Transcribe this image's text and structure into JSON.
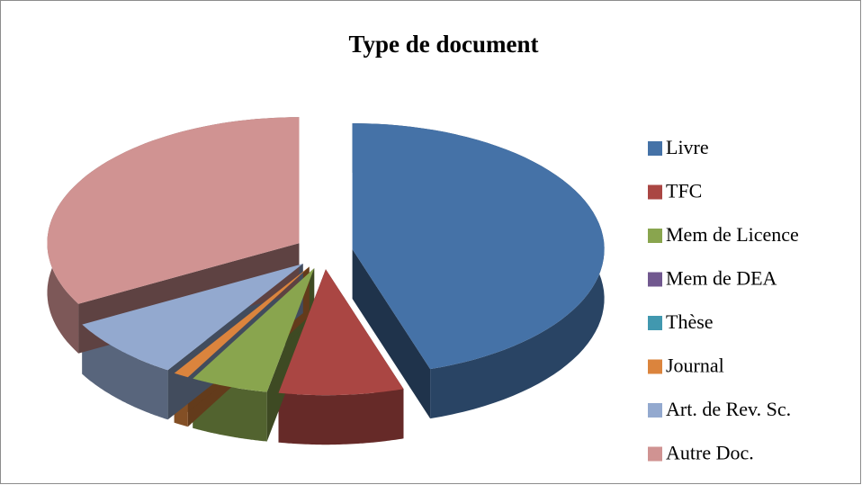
{
  "chart_data": {
    "type": "pie3d",
    "title": "Type de document",
    "categories": [
      "Livre",
      "TFC",
      "Mem de Licence",
      "Mem de DEA",
      "Thèse",
      "Journal",
      "Art. de Rev. Sc.",
      "Autre Doc."
    ],
    "values": [
      45,
      8,
      5,
      0,
      0,
      1,
      8,
      33
    ],
    "colors": [
      "#4572a7",
      "#aa4643",
      "#89a54e",
      "#71588f",
      "#4198af",
      "#db843d",
      "#93a9cf",
      "#d09392"
    ],
    "legend": "right"
  }
}
